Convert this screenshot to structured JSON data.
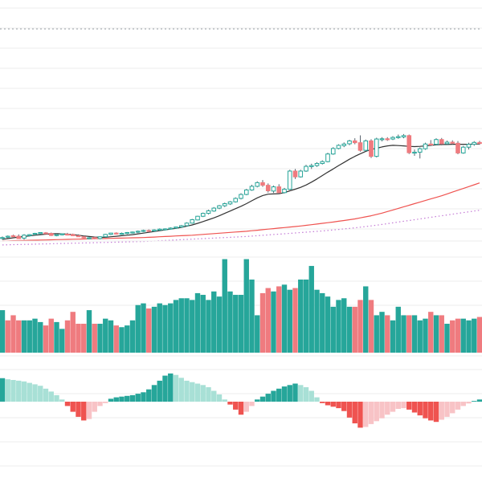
{
  "colors": {
    "up": "#26a69a",
    "down": "#ef7b7f",
    "wick": "#5c6670",
    "ma_short": "#333333",
    "ma_long": "#ef5350",
    "ma_dotted": "#c47bd6",
    "grid": "#eeeeee",
    "dotted_top": "#9aa0a6",
    "hist_up_strong": "#26a69a",
    "hist_up_weak": "#a8e0d6",
    "hist_down_strong": "#ef5350",
    "hist_down_weak": "#f8c3c6"
  },
  "chart_data": [
    {
      "type": "candlestick",
      "panel": "price",
      "title": "",
      "ylim": [
        60,
        145
      ],
      "grid": true,
      "candles": [
        [
          60.6,
          61.1,
          59.9,
          60.7
        ],
        [
          60.9,
          61.5,
          60.5,
          61.2
        ],
        [
          61.4,
          61.8,
          60.9,
          61.1
        ],
        [
          61.2,
          61.9,
          60.7,
          60.3
        ],
        [
          60.5,
          62.0,
          59.9,
          61.6
        ],
        [
          61.5,
          62.0,
          61.1,
          61.8
        ],
        [
          62.0,
          62.5,
          61.6,
          62.3
        ],
        [
          62.2,
          62.7,
          61.9,
          62.6
        ],
        [
          62.5,
          62.8,
          62.0,
          62.4
        ],
        [
          62.3,
          62.6,
          61.3,
          61.5
        ],
        [
          61.6,
          62.2,
          61.2,
          61.8
        ],
        [
          61.8,
          62.3,
          61.5,
          62.1
        ],
        [
          62.0,
          62.5,
          61.6,
          61.9
        ],
        [
          61.9,
          62.2,
          61.3,
          61.4
        ],
        [
          61.4,
          61.9,
          60.9,
          61.0
        ],
        [
          61.0,
          61.5,
          60.4,
          60.6
        ],
        [
          60.5,
          61.0,
          60.0,
          60.6
        ],
        [
          60.7,
          61.1,
          60.1,
          60.3
        ],
        [
          60.3,
          61.2,
          60.0,
          61.0
        ],
        [
          61.0,
          62.1,
          60.7,
          61.9
        ],
        [
          61.9,
          62.5,
          61.6,
          62.4
        ],
        [
          62.4,
          62.7,
          61.9,
          62.1
        ],
        [
          62.1,
          62.6,
          61.8,
          62.3
        ],
        [
          62.3,
          62.8,
          61.9,
          62.6
        ],
        [
          62.5,
          63.0,
          62.2,
          62.8
        ],
        [
          62.8,
          63.4,
          62.4,
          63.1
        ],
        [
          63.1,
          63.7,
          62.8,
          63.4
        ],
        [
          63.4,
          63.8,
          63.0,
          63.2
        ],
        [
          63.2,
          63.9,
          62.9,
          63.6
        ],
        [
          63.6,
          64.2,
          63.3,
          63.9
        ],
        [
          63.8,
          64.2,
          63.4,
          64.0
        ],
        [
          64.0,
          64.6,
          63.8,
          64.3
        ],
        [
          64.3,
          64.9,
          64.0,
          64.7
        ],
        [
          64.7,
          65.5,
          64.4,
          65.2
        ],
        [
          65.2,
          66.5,
          65.0,
          66.2
        ],
        [
          66.2,
          67.8,
          66.0,
          67.5
        ],
        [
          67.4,
          69.0,
          67.2,
          68.8
        ],
        [
          68.8,
          70.2,
          68.5,
          69.9
        ],
        [
          69.9,
          71.3,
          69.5,
          70.9
        ],
        [
          70.8,
          72.3,
          70.5,
          71.9
        ],
        [
          71.9,
          73.1,
          71.5,
          72.8
        ],
        [
          72.8,
          74.0,
          72.3,
          73.6
        ],
        [
          73.5,
          74.6,
          73.1,
          74.3
        ],
        [
          74.3,
          76.0,
          74.0,
          75.6
        ],
        [
          75.6,
          77.6,
          75.2,
          77.1
        ],
        [
          77.1,
          79.2,
          76.8,
          78.8
        ],
        [
          78.8,
          80.8,
          78.5,
          80.2
        ],
        [
          80.2,
          82.1,
          79.8,
          81.6
        ],
        [
          81.6,
          82.6,
          80.0,
          80.6
        ],
        [
          80.6,
          81.3,
          77.8,
          78.5
        ],
        [
          78.4,
          80.5,
          77.7,
          80.0
        ],
        [
          80.0,
          81.0,
          77.2,
          77.8
        ],
        [
          77.8,
          79.6,
          77.5,
          79.1
        ],
        [
          79.1,
          86.5,
          78.9,
          86.0
        ],
        [
          86.0,
          86.8,
          83.0,
          83.8
        ],
        [
          83.8,
          86.5,
          83.5,
          86.0
        ],
        [
          86.0,
          88.4,
          85.7,
          87.8
        ],
        [
          87.7,
          88.8,
          86.8,
          88.1
        ],
        [
          88.1,
          89.4,
          87.6,
          88.9
        ],
        [
          88.9,
          90.1,
          88.5,
          89.6
        ],
        [
          89.6,
          93.0,
          89.3,
          92.5
        ],
        [
          92.5,
          95.1,
          92.2,
          94.6
        ],
        [
          94.6,
          96.2,
          94.3,
          95.8
        ],
        [
          95.7,
          96.9,
          95.1,
          96.3
        ],
        [
          96.4,
          97.9,
          95.8,
          97.5
        ],
        [
          97.5,
          98.5,
          96.2,
          96.8
        ],
        [
          96.8,
          99.6,
          93.4,
          93.9
        ],
        [
          93.9,
          98.0,
          93.6,
          97.5
        ],
        [
          97.5,
          98.1,
          91.0,
          91.6
        ],
        [
          91.6,
          98.7,
          91.2,
          98.2
        ],
        [
          98.2,
          98.9,
          97.3,
          98.3
        ],
        [
          98.3,
          98.9,
          97.5,
          98.2
        ],
        [
          98.2,
          99.3,
          97.8,
          98.8
        ],
        [
          98.8,
          99.9,
          98.3,
          99.1
        ],
        [
          99.0,
          100.1,
          98.5,
          99.5
        ],
        [
          99.5,
          99.9,
          92.5,
          93.0
        ],
        [
          93.0,
          94.2,
          91.8,
          93.2
        ],
        [
          93.2,
          95.0,
          90.8,
          94.5
        ],
        [
          94.5,
          96.8,
          94.1,
          96.3
        ],
        [
          96.3,
          97.8,
          95.5,
          96.1
        ],
        [
          96.2,
          98.5,
          95.8,
          98.0
        ],
        [
          98.0,
          98.6,
          95.8,
          96.4
        ],
        [
          96.4,
          97.6,
          95.9,
          97.0
        ],
        [
          97.0,
          97.7,
          96.1,
          96.6
        ],
        [
          96.6,
          97.4,
          92.4,
          92.9
        ],
        [
          92.9,
          95.6,
          92.6,
          95.1
        ],
        [
          95.1,
          96.8,
          94.2,
          96.2
        ],
        [
          96.2,
          97.4,
          95.6,
          96.9
        ],
        [
          96.9,
          97.5,
          96.0,
          96.5
        ]
      ],
      "ma_short": [
        60.0,
        60.3,
        60.6,
        60.9,
        61.1,
        61.3,
        61.6,
        61.8,
        62.0,
        62.1,
        62.2,
        62.1,
        62.0,
        61.8,
        61.6,
        61.3,
        61.1,
        60.9,
        60.8,
        60.8,
        61.0,
        61.2,
        61.4,
        61.6,
        61.8,
        62.1,
        62.4,
        62.7,
        63.0,
        63.3,
        63.6,
        63.9,
        64.2,
        64.6,
        65.0,
        65.5,
        66.1,
        66.8,
        67.5,
        68.2,
        69.0,
        69.9,
        70.8,
        71.7,
        72.6,
        73.6,
        74.7,
        75.8,
        76.7,
        77.2,
        77.3,
        77.4,
        77.8,
        78.5,
        79.1,
        79.8,
        80.7,
        81.8,
        83.0,
        84.3,
        85.6,
        86.8,
        88.1,
        89.3,
        90.5,
        91.6,
        92.6,
        93.5,
        94.2,
        94.7,
        95.2,
        95.6,
        95.8,
        95.7,
        95.6,
        95.4,
        95.3,
        95.4,
        95.6,
        95.8,
        96.0,
        96.1,
        96.1,
        96.2,
        96.2,
        96.2,
        96.2,
        96.3,
        96.3
      ],
      "ma_long": [
        59.4,
        59.45,
        59.5,
        59.55,
        59.6,
        59.65,
        59.7,
        59.75,
        59.8,
        59.85,
        59.9,
        59.95,
        60.0,
        60.05,
        60.1,
        60.15,
        60.2,
        60.25,
        60.3,
        60.35,
        60.4,
        60.45,
        60.5,
        60.55,
        60.6,
        60.65,
        60.7,
        60.8,
        60.9,
        61.0,
        61.1,
        61.2,
        61.3,
        61.4,
        61.5,
        61.6,
        61.75,
        61.9,
        62.05,
        62.2,
        62.35,
        62.5,
        62.65,
        62.8,
        62.95,
        63.1,
        63.3,
        63.5,
        63.7,
        63.9,
        64.1,
        64.3,
        64.5,
        64.7,
        64.9,
        65.1,
        65.35,
        65.6,
        65.85,
        66.1,
        66.35,
        66.6,
        66.9,
        67.2,
        67.5,
        67.8,
        68.2,
        68.6,
        69.0,
        69.5,
        70.0,
        70.6,
        71.2,
        71.8,
        72.4,
        73.0,
        73.6,
        74.2,
        74.8,
        75.4,
        76.0,
        76.6,
        77.3,
        78.0,
        78.7,
        79.4,
        80.1,
        80.8,
        81.5
      ],
      "ma_dotted": [
        57.9,
        57.95,
        58.0,
        58.05,
        58.1,
        58.15,
        58.2,
        58.25,
        58.3,
        58.35,
        58.4,
        58.45,
        58.5,
        58.55,
        58.6,
        58.65,
        58.7,
        58.75,
        58.8,
        58.85,
        58.9,
        58.95,
        59.0,
        59.05,
        59.1,
        59.15,
        59.2,
        59.3,
        59.4,
        59.5,
        59.6,
        59.7,
        59.8,
        59.9,
        60.0,
        60.1,
        60.2,
        60.3,
        60.4,
        60.5,
        60.6,
        60.7,
        60.8,
        60.9,
        61.0,
        61.1,
        61.25,
        61.4,
        61.55,
        61.7,
        61.85,
        62.0,
        62.15,
        62.3,
        62.45,
        62.6,
        62.75,
        62.9,
        63.05,
        63.2,
        63.4,
        63.6,
        63.8,
        64.0,
        64.2,
        64.4,
        64.65,
        64.9,
        65.15,
        65.4,
        65.7,
        66.0,
        66.3,
        66.6,
        66.9,
        67.2,
        67.5,
        67.8,
        68.1,
        68.4,
        68.7,
        69.0,
        69.3,
        69.6,
        69.9,
        70.2,
        70.5,
        70.8,
        71.1
      ]
    },
    {
      "type": "bar",
      "panel": "volume",
      "ylim": [
        0,
        120
      ],
      "values": [
        50,
        38,
        44,
        38,
        38,
        38,
        40,
        36,
        32,
        40,
        36,
        28,
        38,
        48,
        34,
        34,
        50,
        34,
        34,
        40,
        38,
        32,
        30,
        32,
        38,
        56,
        58,
        52,
        54,
        58,
        56,
        58,
        62,
        64,
        64,
        62,
        70,
        68,
        62,
        72,
        66,
        110,
        72,
        68,
        68,
        110,
        86,
        44,
        70,
        76,
        72,
        78,
        80,
        74,
        76,
        86,
        86,
        102,
        74,
        70,
        66,
        54,
        62,
        64,
        54,
        54,
        62,
        78,
        62,
        44,
        48,
        44,
        38,
        54,
        44,
        44,
        44,
        38,
        40,
        48,
        44,
        44,
        34,
        38,
        40,
        40,
        38,
        40,
        42
      ],
      "directions": [
        1,
        -1,
        -1,
        -1,
        1,
        1,
        1,
        1,
        -1,
        -1,
        1,
        1,
        -1,
        -1,
        -1,
        -1,
        1,
        -1,
        1,
        1,
        1,
        -1,
        1,
        1,
        1,
        1,
        1,
        -1,
        1,
        1,
        1,
        1,
        1,
        1,
        1,
        1,
        1,
        1,
        1,
        1,
        1,
        1,
        1,
        1,
        1,
        1,
        1,
        1,
        -1,
        -1,
        1,
        -1,
        1,
        1,
        -1,
        1,
        1,
        1,
        1,
        1,
        1,
        1,
        1,
        1,
        1,
        -1,
        -1,
        1,
        -1,
        1,
        1,
        -1,
        1,
        1,
        1,
        -1,
        1,
        1,
        1,
        -1,
        1,
        -1,
        1,
        -1,
        -1,
        1,
        1,
        1,
        -1
      ]
    },
    {
      "type": "histogram",
      "panel": "oscillator",
      "ylim": [
        -1,
        1
      ],
      "values": [
        0.65,
        0.62,
        0.6,
        0.58,
        0.56,
        0.52,
        0.48,
        0.44,
        0.36,
        0.28,
        0.18,
        0.06,
        -0.12,
        -0.28,
        -0.42,
        -0.52,
        -0.48,
        -0.28,
        -0.12,
        -0.04,
        0.08,
        0.12,
        0.14,
        0.16,
        0.18,
        0.22,
        0.26,
        0.34,
        0.46,
        0.58,
        0.72,
        0.78,
        0.74,
        0.66,
        0.58,
        0.54,
        0.5,
        0.46,
        0.4,
        0.3,
        0.2,
        0.06,
        -0.08,
        -0.22,
        -0.36,
        -0.28,
        -0.12,
        0.06,
        0.14,
        0.22,
        0.3,
        0.36,
        0.42,
        0.46,
        0.5,
        0.46,
        0.4,
        0.3,
        0.12,
        -0.04,
        -0.1,
        -0.14,
        -0.18,
        -0.26,
        -0.44,
        -0.6,
        -0.72,
        -0.7,
        -0.62,
        -0.54,
        -0.46,
        -0.36,
        -0.28,
        -0.2,
        -0.18,
        -0.22,
        -0.3,
        -0.38,
        -0.46,
        -0.52,
        -0.56,
        -0.5,
        -0.42,
        -0.32,
        -0.22,
        -0.12,
        -0.05,
        0.02,
        0.06
      ]
    }
  ]
}
